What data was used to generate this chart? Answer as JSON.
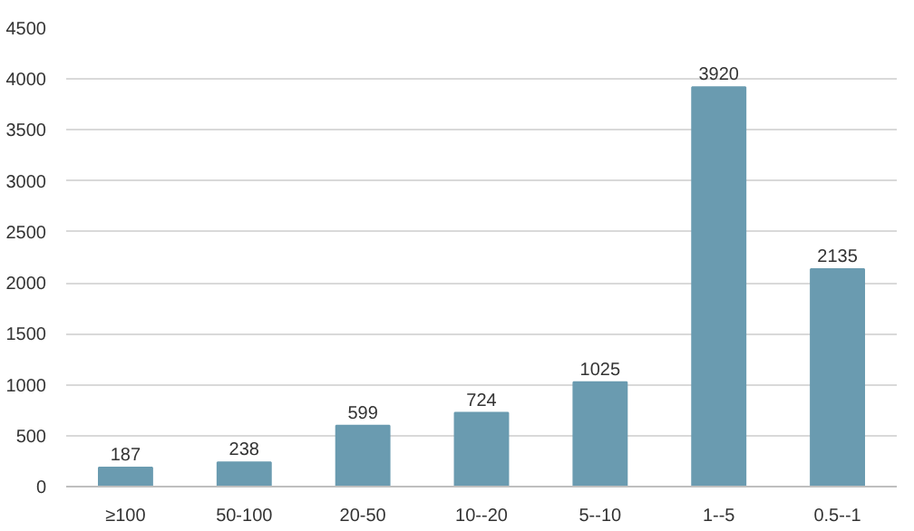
{
  "chart_data": {
    "type": "bar",
    "categories": [
      "≥100",
      "50-100",
      "20-50",
      "10--20",
      "5--10",
      "1--5",
      "0.5--1"
    ],
    "values": [
      187,
      238,
      599,
      724,
      1025,
      3920,
      2135
    ],
    "color": "#6a9bb0",
    "ylim": [
      0,
      4500
    ],
    "yticks": [
      0,
      500,
      1000,
      1500,
      2000,
      2500,
      3000,
      3500,
      4000,
      4500
    ],
    "grid": "y",
    "data_labels": true
  }
}
